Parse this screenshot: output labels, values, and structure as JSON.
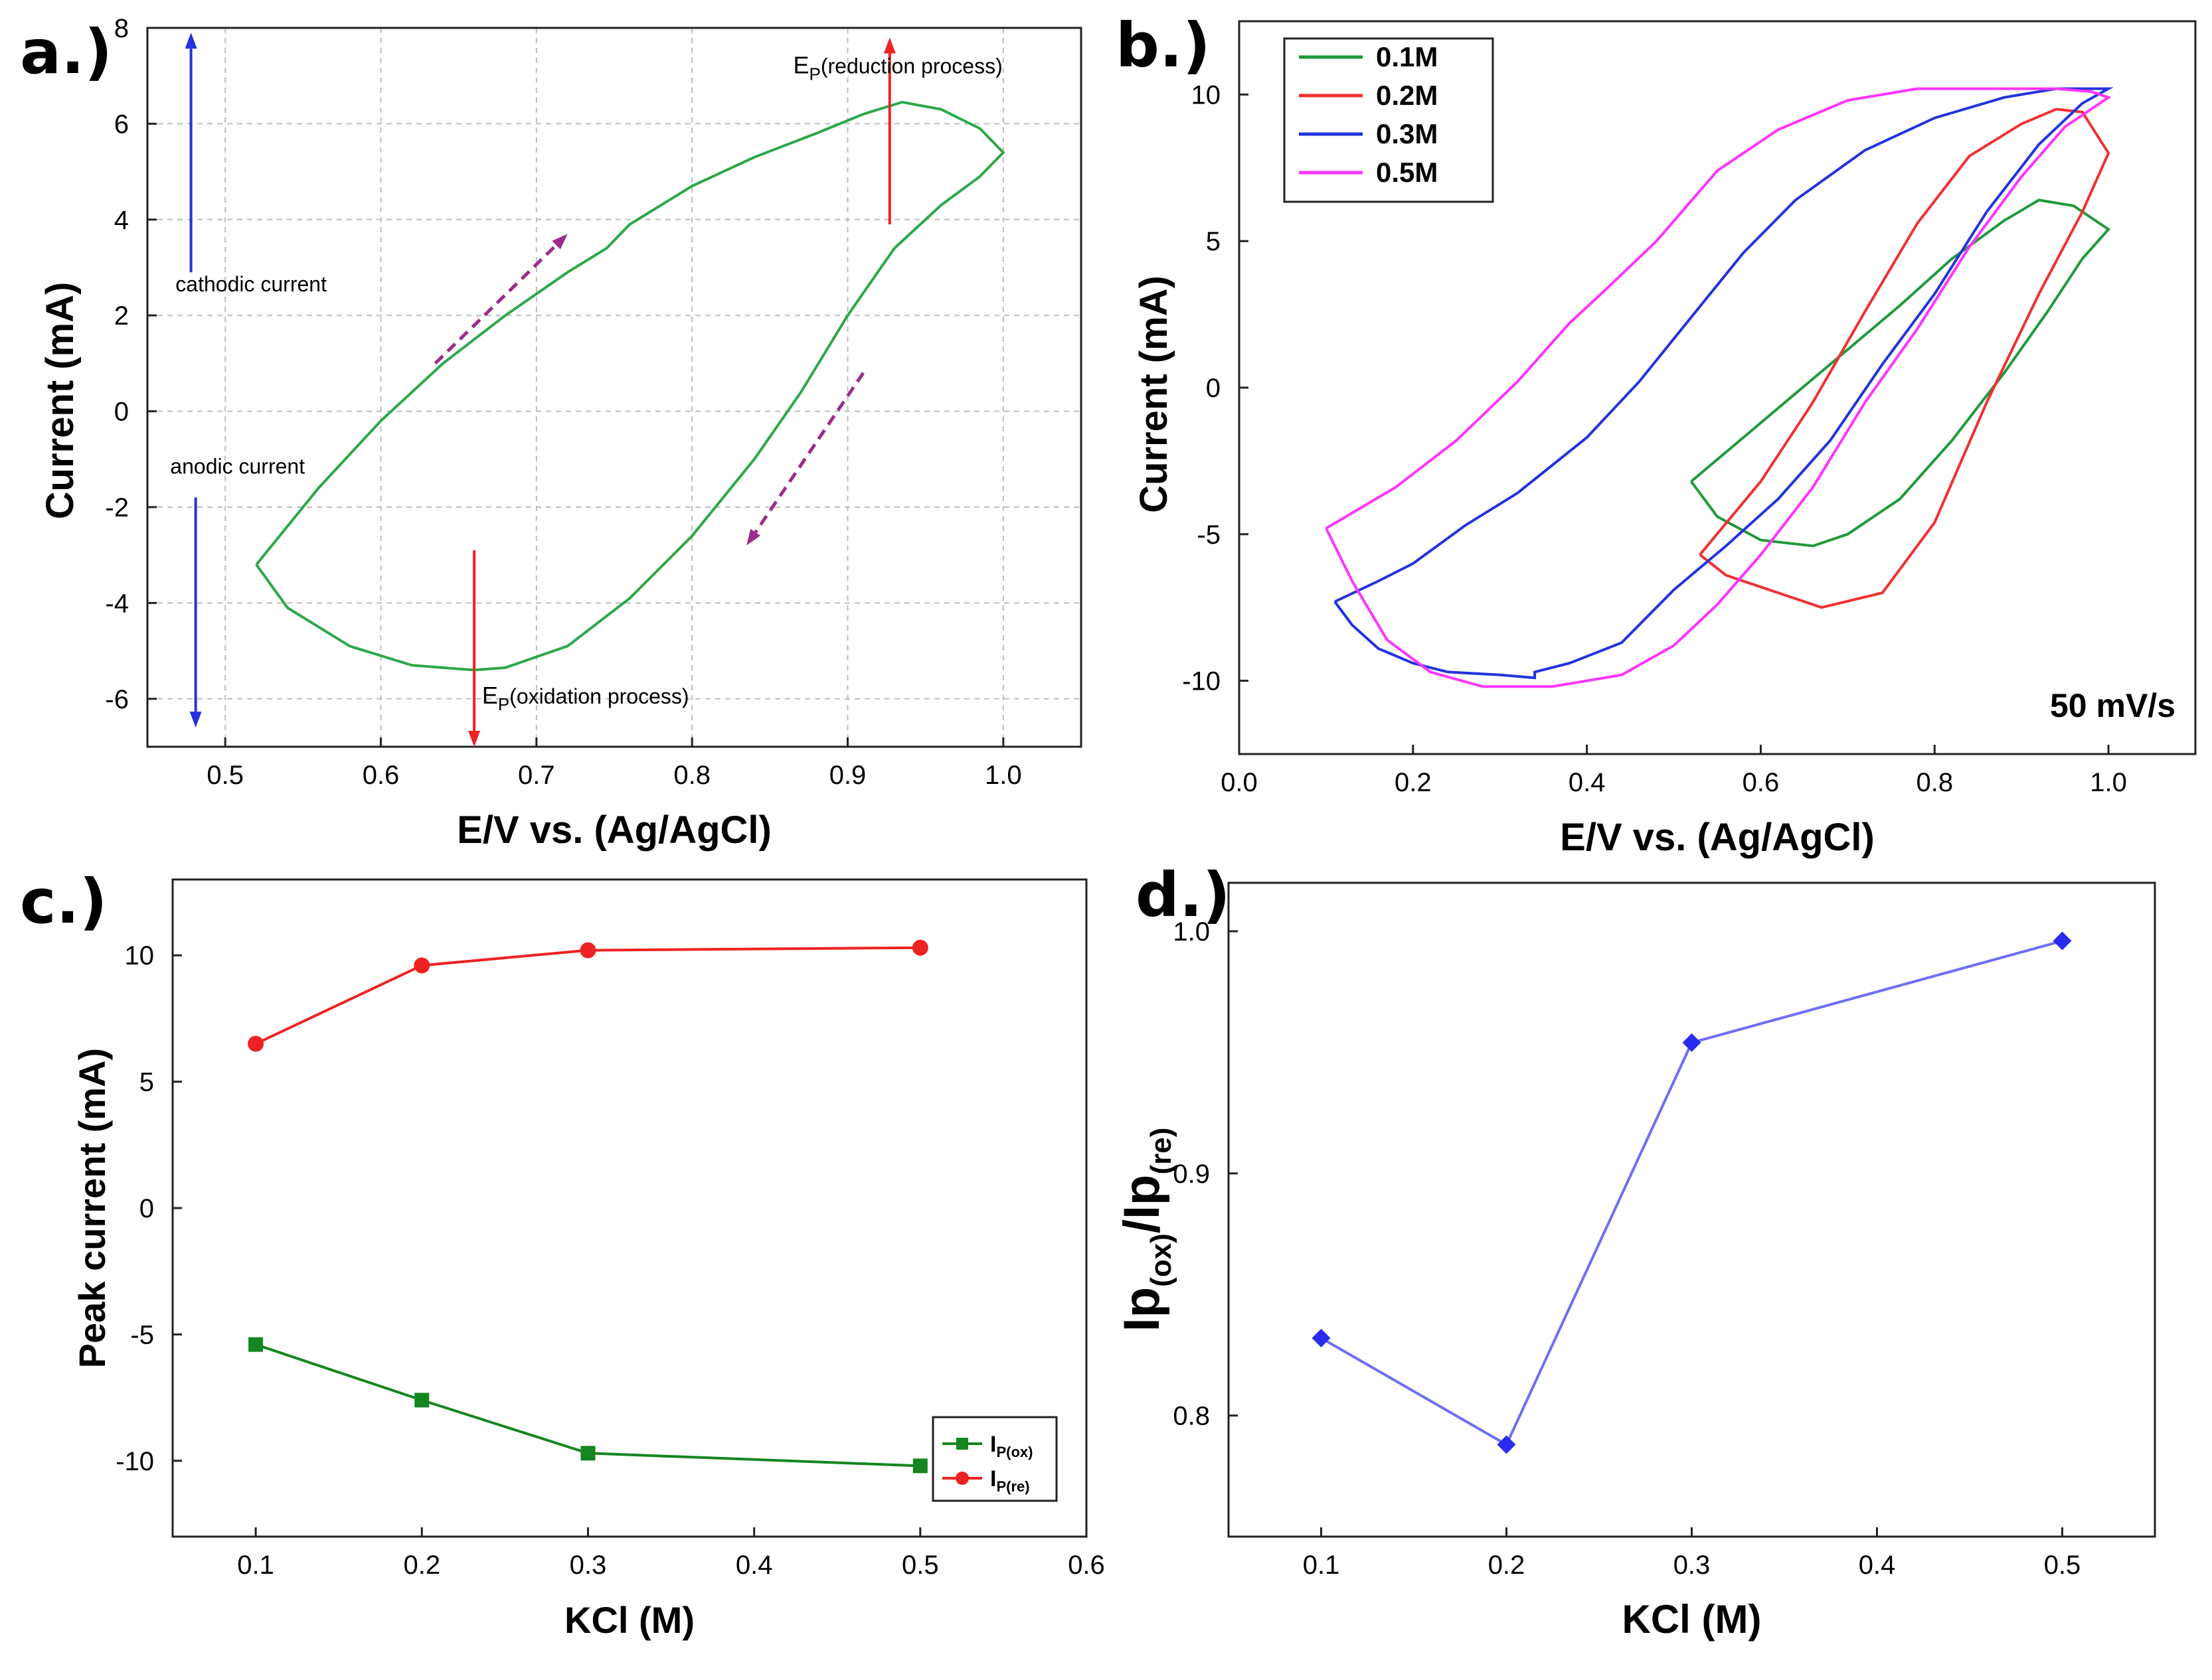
{
  "panels": {
    "a": {
      "letter": "a.)"
    },
    "b": {
      "letter": "b.)"
    },
    "c": {
      "letter": "c.)"
    },
    "d": {
      "letter": "d.)"
    }
  },
  "chart_data": [
    {
      "id": "a",
      "type": "line",
      "xlabel": "E/V vs. (Ag/AgCl)",
      "ylabel": "Current (mA)",
      "xlim": [
        0.45,
        1.05
      ],
      "ylim": [
        -7,
        8
      ],
      "xticks": [
        0.5,
        0.6,
        0.7,
        0.8,
        0.9,
        1.0
      ],
      "xtick_labels": [
        "0.5",
        "0.6",
        "0.7",
        "0.8",
        "0.9",
        "1.0"
      ],
      "yticks": [
        -6,
        -4,
        -2,
        0,
        2,
        4,
        6,
        8
      ],
      "ytick_labels": [
        "-6",
        "-4",
        "-2",
        "0",
        "2",
        "4",
        "6",
        "8"
      ],
      "grid": true,
      "series": [
        {
          "color": "#2ca84a",
          "points": [
            [
              0.52,
              -3.2
            ],
            [
              0.56,
              -1.6
            ],
            [
              0.6,
              -0.2
            ],
            [
              0.64,
              1.0
            ],
            [
              0.68,
              2.0
            ],
            [
              0.72,
              2.9
            ],
            [
              0.745,
              3.4
            ],
            [
              0.76,
              3.9
            ],
            [
              0.8,
              4.7
            ],
            [
              0.84,
              5.3
            ],
            [
              0.88,
              5.8
            ],
            [
              0.91,
              6.2
            ],
            [
              0.935,
              6.45
            ],
            [
              0.96,
              6.3
            ],
            [
              0.985,
              5.9
            ],
            [
              1.0,
              5.4
            ],
            [
              0.985,
              4.9
            ],
            [
              0.96,
              4.3
            ],
            [
              0.93,
              3.4
            ],
            [
              0.9,
              2.0
            ],
            [
              0.87,
              0.4
            ],
            [
              0.84,
              -1.0
            ],
            [
              0.8,
              -2.6
            ],
            [
              0.76,
              -3.9
            ],
            [
              0.72,
              -4.9
            ],
            [
              0.68,
              -5.35
            ],
            [
              0.66,
              -5.4
            ],
            [
              0.62,
              -5.3
            ],
            [
              0.58,
              -4.9
            ],
            [
              0.54,
              -4.1
            ],
            [
              0.52,
              -3.2
            ]
          ]
        }
      ],
      "annotations": [
        {
          "text": "cathodic current",
          "x": 0.48,
          "y": 2.5
        },
        {
          "text": "anodic current",
          "x": 0.48,
          "y": -1.3
        },
        {
          "main": "E",
          "sub": "P",
          "rest": "(reduction process)",
          "x": 0.865,
          "y": 7.05
        },
        {
          "main": "E",
          "sub": "P",
          "rest": "(oxidation process)",
          "x": 0.665,
          "y": -6.1
        }
      ],
      "arrows": [
        {
          "color": "#2233dd",
          "from": [
            0.478,
            2.9
          ],
          "to": [
            0.478,
            7.9
          ]
        },
        {
          "color": "#2233dd",
          "from": [
            0.481,
            -1.8
          ],
          "to": [
            0.481,
            -6.6
          ]
        },
        {
          "color": "#ee2222",
          "from": [
            0.927,
            3.9
          ],
          "to": [
            0.927,
            7.8
          ]
        },
        {
          "color": "#ee2222",
          "from": [
            0.66,
            -2.9
          ],
          "to": [
            0.66,
            -7.0
          ]
        },
        {
          "color": "#9b2b8a",
          "dashed": true,
          "from": [
            0.635,
            1.0
          ],
          "to": [
            0.72,
            3.7
          ]
        },
        {
          "color": "#9b2b8a",
          "dashed": true,
          "from": [
            0.91,
            0.8
          ],
          "to": [
            0.835,
            -2.8
          ]
        }
      ]
    },
    {
      "id": "b",
      "type": "line",
      "xlabel": "E/V vs. (Ag/AgCl)",
      "ylabel": "Current (mA)",
      "xlim": [
        0.0,
        1.1
      ],
      "ylim": [
        -12.5,
        12.5
      ],
      "xticks": [
        0.0,
        0.2,
        0.4,
        0.6,
        0.8,
        1.0
      ],
      "xtick_labels": [
        "0.0",
        "0.2",
        "0.4",
        "0.6",
        "0.8",
        "1.0"
      ],
      "yticks": [
        -10,
        -5,
        0,
        5,
        10
      ],
      "ytick_labels": [
        "-10",
        "-5",
        "0",
        "5",
        "10"
      ],
      "grid": false,
      "legend_position": "top-left",
      "annotation": "50 mV/s",
      "series": [
        {
          "name": "0.1M",
          "color": "#1f9a3a",
          "points": [
            [
              0.52,
              -3.2
            ],
            [
              0.58,
              -1.7
            ],
            [
              0.64,
              -0.2
            ],
            [
              0.7,
              1.3
            ],
            [
              0.76,
              2.8
            ],
            [
              0.82,
              4.4
            ],
            [
              0.88,
              5.7
            ],
            [
              0.92,
              6.4
            ],
            [
              0.96,
              6.2
            ],
            [
              1.0,
              5.4
            ],
            [
              0.97,
              4.4
            ],
            [
              0.93,
              2.6
            ],
            [
              0.88,
              0.5
            ],
            [
              0.82,
              -1.8
            ],
            [
              0.76,
              -3.8
            ],
            [
              0.7,
              -5.0
            ],
            [
              0.66,
              -5.4
            ],
            [
              0.6,
              -5.2
            ],
            [
              0.55,
              -4.4
            ],
            [
              0.52,
              -3.2
            ]
          ]
        },
        {
          "name": "0.2M",
          "color": "#f03030",
          "points": [
            [
              0.53,
              -5.7
            ],
            [
              0.6,
              -3.2
            ],
            [
              0.66,
              -0.5
            ],
            [
              0.72,
              2.6
            ],
            [
              0.78,
              5.6
            ],
            [
              0.84,
              7.9
            ],
            [
              0.9,
              9.0
            ],
            [
              0.94,
              9.5
            ],
            [
              0.97,
              9.4
            ],
            [
              1.0,
              8.0
            ],
            [
              0.97,
              6.0
            ],
            [
              0.92,
              3.2
            ],
            [
              0.86,
              -0.5
            ],
            [
              0.8,
              -4.6
            ],
            [
              0.74,
              -7.0
            ],
            [
              0.67,
              -7.5
            ],
            [
              0.6,
              -6.8
            ],
            [
              0.56,
              -6.4
            ],
            [
              0.53,
              -5.7
            ]
          ]
        },
        {
          "name": "0.3M",
          "color": "#2233dd",
          "points": [
            [
              0.11,
              -7.3
            ],
            [
              0.16,
              -6.6
            ],
            [
              0.2,
              -6.0
            ],
            [
              0.26,
              -4.7
            ],
            [
              0.32,
              -3.6
            ],
            [
              0.4,
              -1.7
            ],
            [
              0.46,
              0.2
            ],
            [
              0.52,
              2.4
            ],
            [
              0.58,
              4.6
            ],
            [
              0.64,
              6.4
            ],
            [
              0.72,
              8.1
            ],
            [
              0.8,
              9.2
            ],
            [
              0.88,
              9.9
            ],
            [
              0.94,
              10.2
            ],
            [
              1.0,
              10.2
            ],
            [
              0.97,
              9.7
            ],
            [
              0.92,
              8.3
            ],
            [
              0.86,
              6.0
            ],
            [
              0.8,
              3.2
            ],
            [
              0.74,
              0.8
            ],
            [
              0.68,
              -1.8
            ],
            [
              0.62,
              -3.8
            ],
            [
              0.56,
              -5.4
            ],
            [
              0.5,
              -6.9
            ],
            [
              0.44,
              -8.7
            ],
            [
              0.38,
              -9.4
            ],
            [
              0.34,
              -9.7
            ],
            [
              0.34,
              -9.9
            ],
            [
              0.3,
              -9.8
            ],
            [
              0.24,
              -9.7
            ],
            [
              0.2,
              -9.4
            ],
            [
              0.16,
              -8.9
            ],
            [
              0.13,
              -8.1
            ],
            [
              0.11,
              -7.3
            ]
          ]
        },
        {
          "name": "0.5M",
          "color": "#ff33ff",
          "points": [
            [
              0.1,
              -4.8
            ],
            [
              0.18,
              -3.4
            ],
            [
              0.25,
              -1.8
            ],
            [
              0.32,
              0.2
            ],
            [
              0.38,
              2.2
            ],
            [
              0.42,
              3.3
            ],
            [
              0.48,
              5.0
            ],
            [
              0.55,
              7.4
            ],
            [
              0.62,
              8.8
            ],
            [
              0.7,
              9.8
            ],
            [
              0.78,
              10.2
            ],
            [
              0.86,
              10.2
            ],
            [
              0.94,
              10.2
            ],
            [
              0.98,
              10.1
            ],
            [
              1.0,
              9.9
            ],
            [
              0.95,
              8.9
            ],
            [
              0.9,
              7.2
            ],
            [
              0.84,
              4.8
            ],
            [
              0.78,
              2.0
            ],
            [
              0.72,
              -0.5
            ],
            [
              0.66,
              -3.4
            ],
            [
              0.6,
              -5.7
            ],
            [
              0.55,
              -7.4
            ],
            [
              0.5,
              -8.8
            ],
            [
              0.44,
              -9.8
            ],
            [
              0.36,
              -10.2
            ],
            [
              0.28,
              -10.2
            ],
            [
              0.22,
              -9.7
            ],
            [
              0.17,
              -8.6
            ],
            [
              0.13,
              -6.6
            ],
            [
              0.1,
              -4.8
            ]
          ]
        }
      ]
    },
    {
      "id": "c",
      "type": "line",
      "xlabel": "KCl (M)",
      "ylabel": "Peak current (mA)",
      "xlim": [
        0.05,
        0.6
      ],
      "ylim": [
        -13,
        13
      ],
      "xticks": [
        0.1,
        0.2,
        0.3,
        0.4,
        0.5,
        0.6
      ],
      "xtick_labels": [
        "0.1",
        "0.2",
        "0.3",
        "0.4",
        "0.5",
        "0.6"
      ],
      "yticks": [
        -10,
        -5,
        0,
        5,
        10
      ],
      "ytick_labels": [
        "-10",
        "-5",
        "0",
        "5",
        "10"
      ],
      "grid": false,
      "legend_position": "bottom-right",
      "series": [
        {
          "label_main": "I",
          "label_sub": "P(ox)",
          "color": "#15851f",
          "marker": "square",
          "x": [
            0.1,
            0.2,
            0.3,
            0.5
          ],
          "values": [
            -5.4,
            -7.6,
            -9.7,
            -10.2
          ]
        },
        {
          "label_main": "I",
          "label_sub": "P(re)",
          "color": "#ee2222",
          "marker": "circle",
          "x": [
            0.1,
            0.2,
            0.3,
            0.5
          ],
          "values": [
            6.5,
            9.6,
            10.2,
            10.3
          ]
        }
      ]
    },
    {
      "id": "d",
      "type": "line",
      "xlabel": "KCl (M)",
      "ylabel_parts": [
        "Ip",
        "(ox)",
        "/Ip",
        "(re)"
      ],
      "xlim": [
        0.05,
        0.55
      ],
      "ylim": [
        0.75,
        1.02
      ],
      "xticks": [
        0.1,
        0.2,
        0.3,
        0.4,
        0.5
      ],
      "xtick_labels": [
        "0.1",
        "0.2",
        "0.3",
        "0.4",
        "0.5"
      ],
      "yticks": [
        0.8,
        0.9,
        1.0
      ],
      "ytick_labels": [
        "0.8",
        "0.9",
        "1.0"
      ],
      "grid": false,
      "series": [
        {
          "color": "#2a2af0",
          "line_color": "#6e6ef5",
          "marker": "diamond",
          "x": [
            0.1,
            0.2,
            0.3,
            0.5
          ],
          "values": [
            0.832,
            0.788,
            0.954,
            0.996
          ]
        }
      ]
    }
  ]
}
